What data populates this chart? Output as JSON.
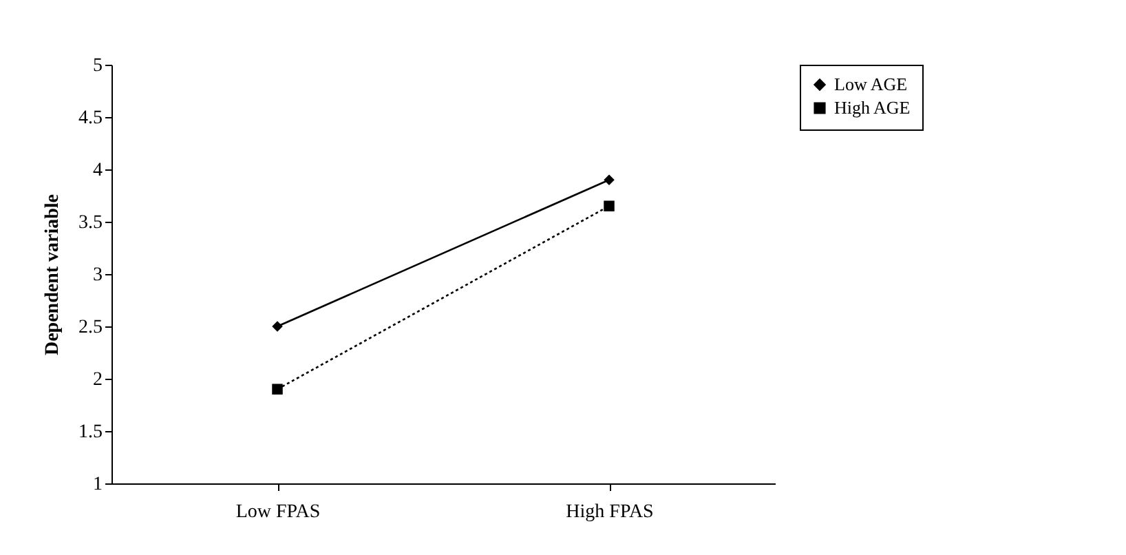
{
  "chart_data": {
    "type": "line",
    "ylabel": "Dependent variable",
    "categories": [
      "Low FPAS",
      "High FPAS"
    ],
    "series": [
      {
        "name": "Low AGE",
        "color": "#000000",
        "values": [
          2.5,
          3.9
        ],
        "marker": "diamond",
        "line_style": "solid"
      },
      {
        "name": "High AGE",
        "color": "#000000",
        "values": [
          1.9,
          3.65
        ],
        "marker": "square",
        "line_style": "dotted"
      }
    ],
    "ylim": [
      1,
      5
    ],
    "yticks": [
      1,
      1.5,
      2,
      2.5,
      3,
      3.5,
      4,
      4.5,
      5
    ],
    "grid": false,
    "legend": "right"
  }
}
